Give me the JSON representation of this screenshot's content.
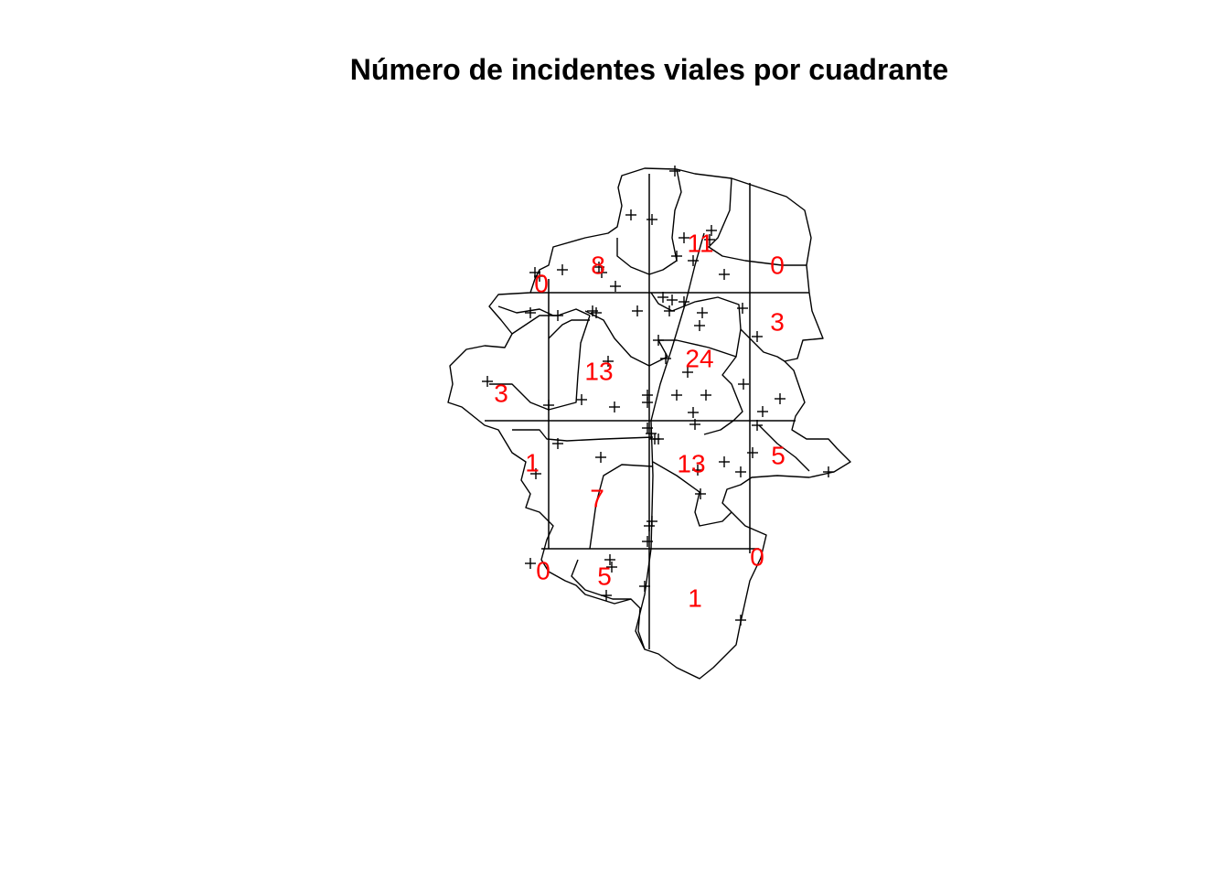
{
  "title": "Número de incidentes viales por cuadrante",
  "colors": {
    "count_label": "#ff0000",
    "lines": "#000000",
    "background": "#ffffff"
  },
  "legend_marker": "plus-sign",
  "quadrant_counts": [
    {
      "row": 1,
      "col": 2,
      "value": 8
    },
    {
      "row": 1,
      "col": 3,
      "value": 11
    },
    {
      "row": 1,
      "col": 4,
      "value": 0
    },
    {
      "row": 1,
      "col": 1,
      "value": 0
    },
    {
      "row": 2,
      "col": 2,
      "value": 13
    },
    {
      "row": 2,
      "col": 3,
      "value": 24
    },
    {
      "row": 2,
      "col": 4,
      "value": 3
    },
    {
      "row": 2,
      "col": 1,
      "value": 3
    },
    {
      "row": 3,
      "col": 1,
      "value": 1
    },
    {
      "row": 3,
      "col": 2,
      "value": 7
    },
    {
      "row": 3,
      "col": 3,
      "value": 13
    },
    {
      "row": 3,
      "col": 4,
      "value": 5
    },
    {
      "row": 4,
      "col": 1,
      "value": 0
    },
    {
      "row": 4,
      "col": 2,
      "value": 5
    },
    {
      "row": 4,
      "col": 3,
      "value": 1
    },
    {
      "row": 4,
      "col": 4,
      "value": 0
    }
  ]
}
